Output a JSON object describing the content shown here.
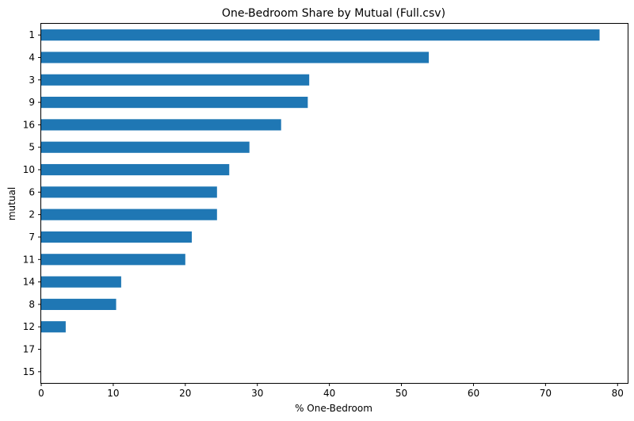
{
  "chart_data": {
    "type": "bar",
    "orientation": "horizontal",
    "title": "One-Bedroom Share by Mutual (Full.csv)",
    "xlabel": "% One-Bedroom",
    "ylabel": "mutual",
    "categories": [
      "1",
      "4",
      "3",
      "9",
      "16",
      "5",
      "10",
      "6",
      "2",
      "7",
      "11",
      "14",
      "8",
      "12",
      "17",
      "15"
    ],
    "values": [
      77.5,
      53.8,
      37.2,
      37.0,
      33.3,
      28.9,
      26.1,
      24.4,
      24.4,
      20.9,
      20.0,
      11.1,
      10.4,
      3.4,
      0,
      0
    ],
    "xlim": [
      0,
      81.4
    ],
    "xticks": [
      0,
      10,
      20,
      30,
      40,
      50,
      60,
      70,
      80
    ],
    "bar_color": "#1f77b4",
    "grid": false,
    "legend": "none"
  }
}
